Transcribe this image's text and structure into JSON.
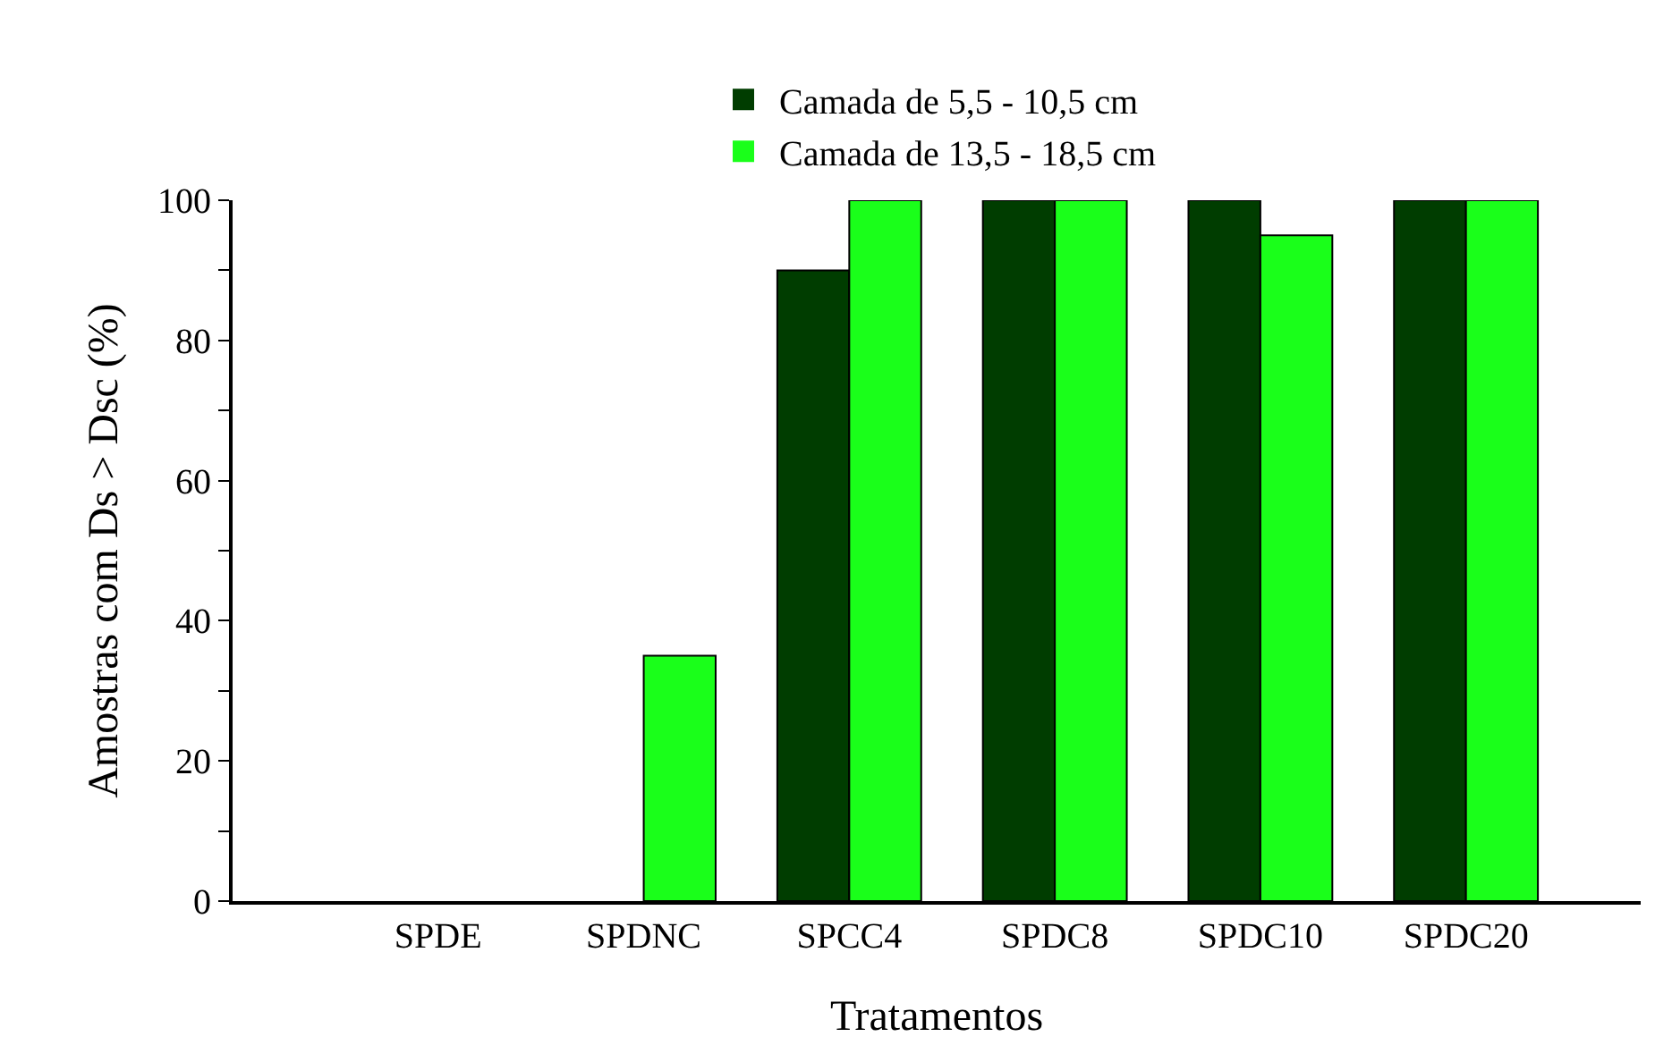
{
  "chart_data": {
    "type": "bar",
    "xlabel": "Tratamentos",
    "ylabel": "Amostras com Ds > Dsc (%)",
    "categories": [
      "SPDE",
      "SPDNC",
      "SPCC4",
      "SPDC8",
      "SPDC10",
      "SPDC20"
    ],
    "series": [
      {
        "name": "Camada de 5,5 - 10,5 cm",
        "color": "#003d00",
        "values": [
          0,
          0,
          90,
          100,
          100,
          100
        ]
      },
      {
        "name": "Camada de 13,5 - 18,5 cm",
        "color": "#1aff1a",
        "values": [
          0,
          35,
          100,
          100,
          95,
          100
        ]
      }
    ],
    "ylim": [
      0,
      100
    ],
    "yticks": [
      0,
      {
        "value": 10,
        "label": null
      },
      20,
      {
        "value": 30,
        "label": null
      },
      40,
      {
        "value": 50,
        "label": null
      },
      60,
      {
        "value": 70,
        "label": null
      },
      80,
      {
        "value": 90,
        "label": null
      },
      100
    ],
    "legend": "top"
  }
}
